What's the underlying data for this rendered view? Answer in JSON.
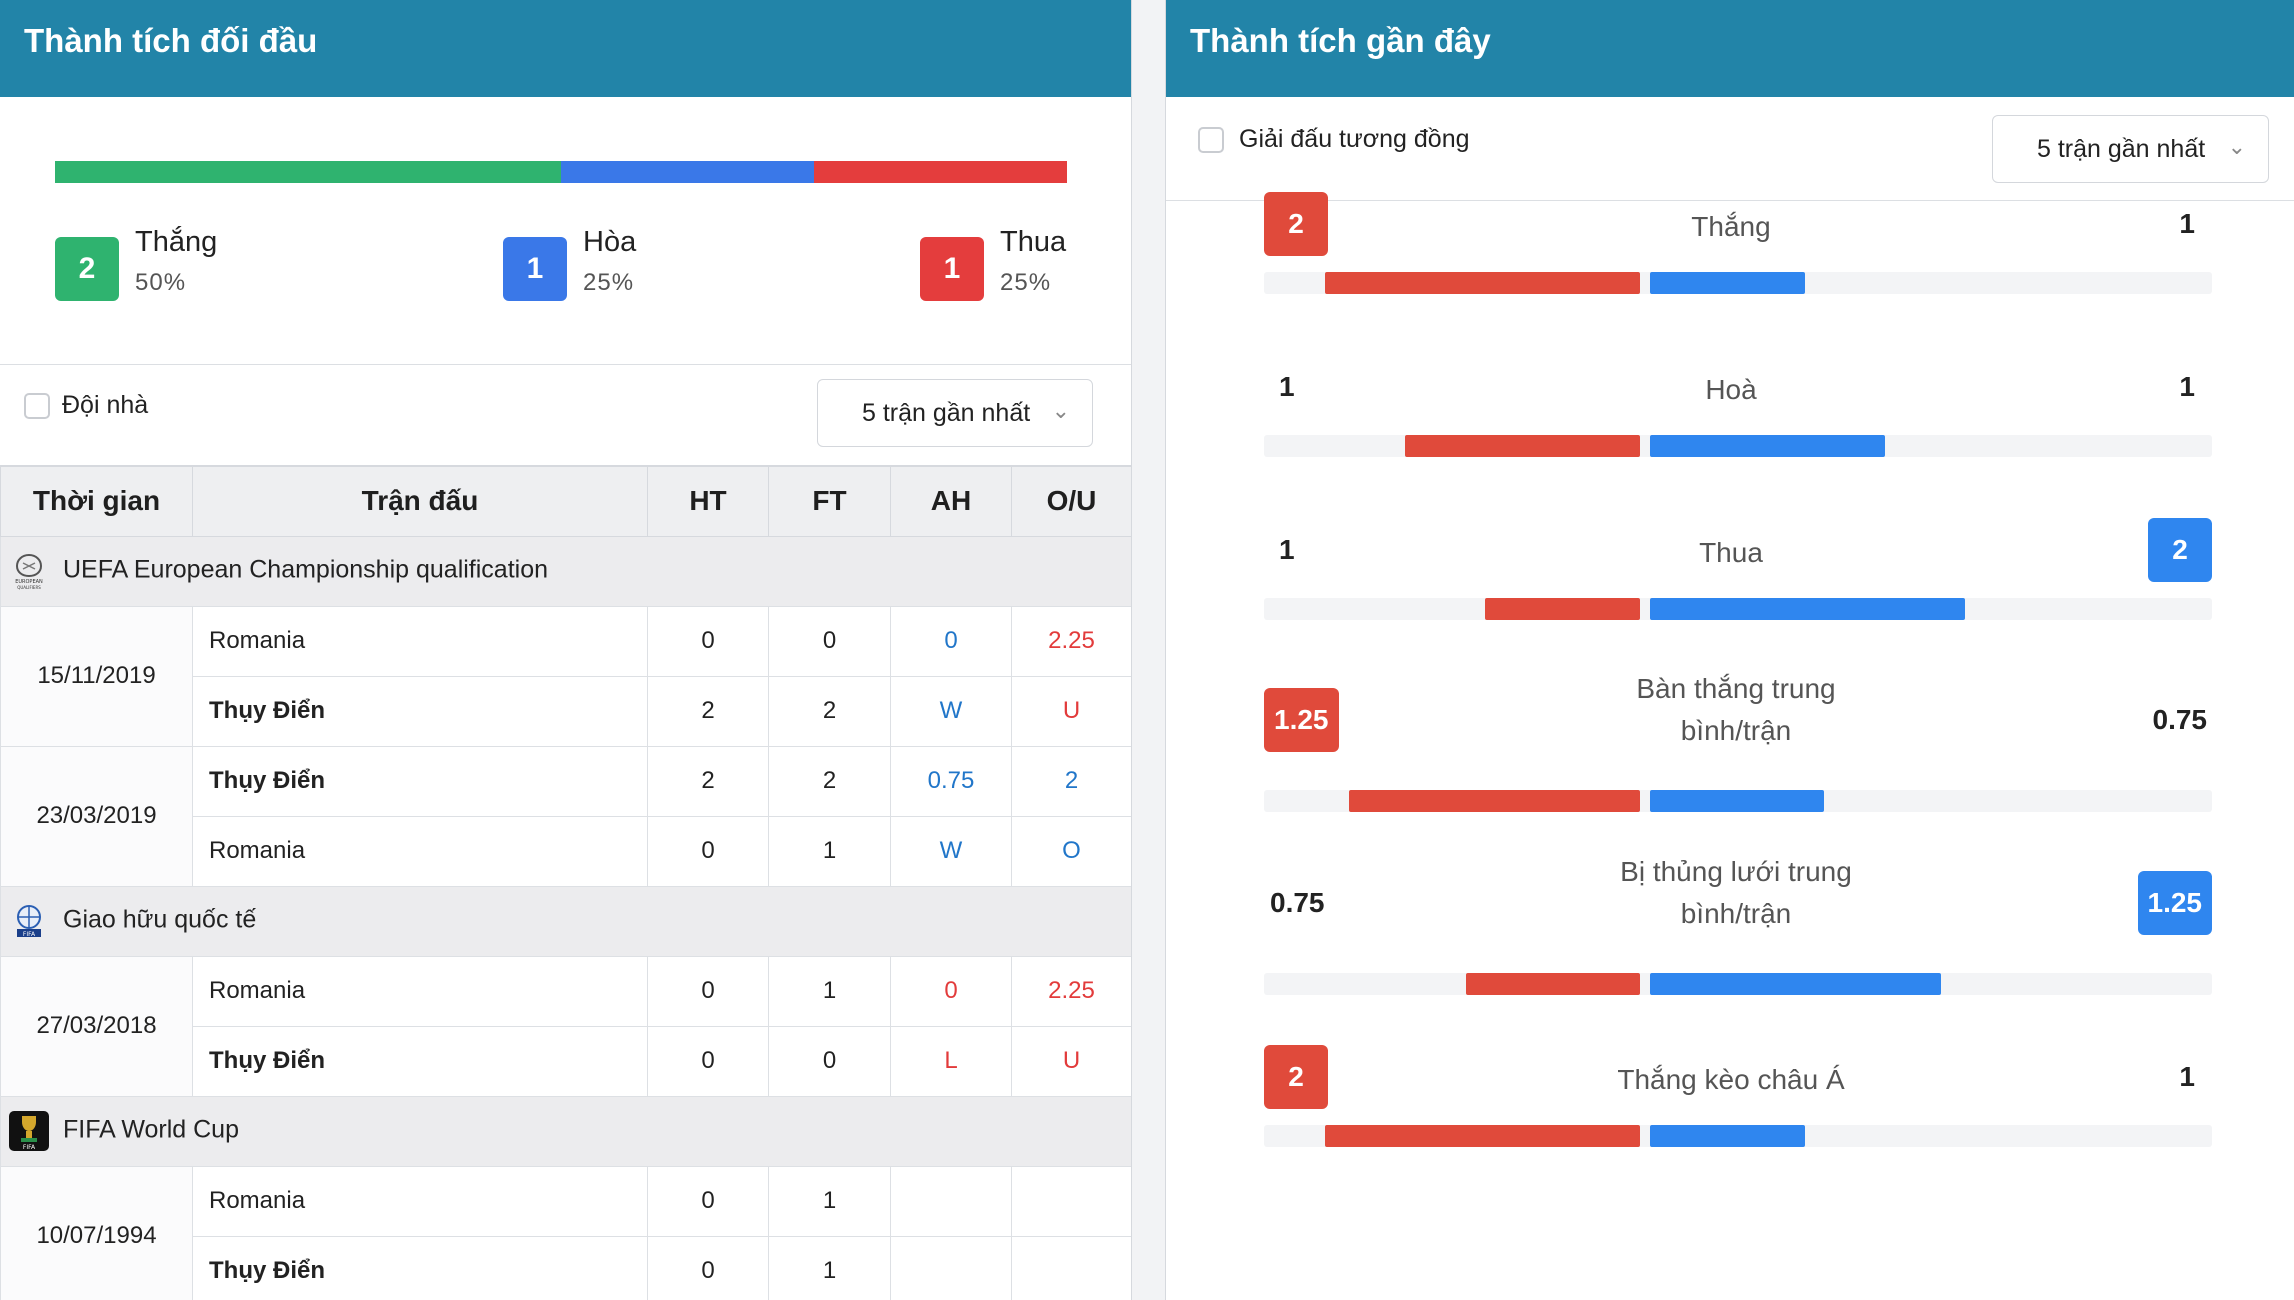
{
  "colors": {
    "header": "#2284a8",
    "win": "#2fb36f",
    "draw": "#3a78e8",
    "loss": "#e43d3d",
    "home_bar": "#e04a3b",
    "away_bar": "#2f86ef"
  },
  "left": {
    "title": "Thành tích đối đầu",
    "summary": [
      {
        "count": "2",
        "label": "Thắng",
        "pct": "50%",
        "color": "#2fb36f",
        "share": 0.5
      },
      {
        "count": "1",
        "label": "Hòa",
        "pct": "25%",
        "color": "#3a78e8",
        "share": 0.25
      },
      {
        "count": "1",
        "label": "Thua",
        "pct": "25%",
        "color": "#e43d3d",
        "share": 0.25
      }
    ],
    "filter_label": "Đội nhà",
    "select_value": "5 trận gần nhất",
    "columns": [
      "Thời gian",
      "Trận đấu",
      "HT",
      "FT",
      "AH",
      "O/U"
    ],
    "leagues": [
      {
        "name": "UEFA European Championship qualification",
        "icon": "uefa-euro-icon",
        "matches": [
          {
            "date": "15/11/2019",
            "rows": [
              {
                "team": "Romania",
                "bold": false,
                "ht": "0",
                "ft": "0",
                "ah": "0",
                "ah_color": "blue",
                "ou": "2.25",
                "ou_color": "red"
              },
              {
                "team": "Thụy Điển",
                "bold": true,
                "ht": "2",
                "ft": "2",
                "ah": "W",
                "ah_color": "blue",
                "ou": "U",
                "ou_color": "red"
              }
            ]
          },
          {
            "date": "23/03/2019",
            "rows": [
              {
                "team": "Thụy Điển",
                "bold": true,
                "ht": "2",
                "ft": "2",
                "ah": "0.75",
                "ah_color": "blue",
                "ou": "2",
                "ou_color": "blue"
              },
              {
                "team": "Romania",
                "bold": false,
                "ht": "0",
                "ft": "1",
                "ah": "W",
                "ah_color": "blue",
                "ou": "O",
                "ou_color": "blue"
              }
            ]
          }
        ]
      },
      {
        "name": "Giao hữu quốc tế",
        "icon": "fifa-friendly-icon",
        "matches": [
          {
            "date": "27/03/2018",
            "rows": [
              {
                "team": "Romania",
                "bold": false,
                "ht": "0",
                "ft": "1",
                "ah": "0",
                "ah_color": "red",
                "ou": "2.25",
                "ou_color": "red"
              },
              {
                "team": "Thụy Điển",
                "bold": true,
                "ht": "0",
                "ft": "0",
                "ah": "L",
                "ah_color": "red",
                "ou": "U",
                "ou_color": "red"
              }
            ]
          }
        ]
      },
      {
        "name": "FIFA World Cup",
        "icon": "world-cup-trophy-icon",
        "matches": [
          {
            "date": "10/07/1994",
            "rows": [
              {
                "team": "Romania",
                "bold": false,
                "ht": "0",
                "ft": "1",
                "ah": "",
                "ah_color": "blue",
                "ou": "",
                "ou_color": "blue"
              },
              {
                "team": "Thụy Điển",
                "bold": true,
                "ht": "0",
                "ft": "1",
                "ah": "",
                "ah_color": "blue",
                "ou": "",
                "ou_color": "blue"
              }
            ]
          }
        ]
      }
    ]
  },
  "right": {
    "title": "Thành tích gần đây",
    "filter_label": "Giải đấu tương đồng",
    "select_value": "5 trận gần nhất",
    "stats": [
      {
        "label": "Thắng",
        "home": "2",
        "away": "1",
        "home_highlight": true,
        "away_highlight": false,
        "home_fill": 0.67,
        "away_fill": 0.33
      },
      {
        "label": "Hoà",
        "home": "1",
        "away": "1",
        "home_highlight": false,
        "away_highlight": false,
        "home_fill": 0.5,
        "away_fill": 0.5
      },
      {
        "label": "Thua",
        "home": "1",
        "away": "2",
        "home_highlight": false,
        "away_highlight": true,
        "home_fill": 0.33,
        "away_fill": 0.67
      },
      {
        "label": "Bàn thắng trung bình/trận",
        "home": "1.25",
        "away": "0.75",
        "home_highlight": true,
        "away_highlight": false,
        "home_fill": 0.62,
        "away_fill": 0.37
      },
      {
        "label": "Bị thủng lưới trung bình/trận",
        "home": "0.75",
        "away": "1.25",
        "home_highlight": false,
        "away_highlight": true,
        "home_fill": 0.37,
        "away_fill": 0.62
      },
      {
        "label": "Thắng kèo châu Á",
        "home": "2",
        "away": "1",
        "home_highlight": true,
        "away_highlight": false,
        "home_fill": 0.67,
        "away_fill": 0.33
      }
    ]
  }
}
